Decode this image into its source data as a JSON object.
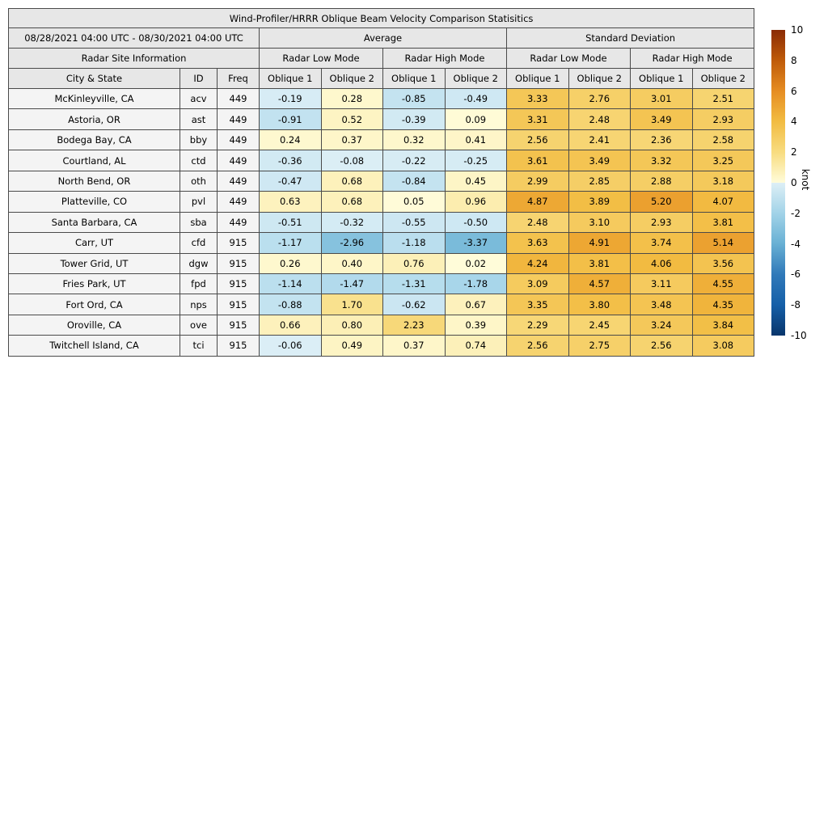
{
  "chart_data": {
    "type": "table",
    "title": "Wind-Profiler/HRRR Oblique Beam Velocity Comparison Statisitics",
    "header": {
      "date_range": "08/28/2021 04:00 UTC - 08/30/2021 04:00 UTC",
      "group_average": "Average",
      "group_std": "Standard Deviation",
      "site_info": "Radar Site Information",
      "low_mode": "Radar Low Mode",
      "high_mode": "Radar High Mode",
      "col_city": "City & State",
      "col_id": "ID",
      "col_freq": "Freq",
      "col_oblique1": "Oblique 1",
      "col_oblique2": "Oblique 2"
    },
    "rows": [
      {
        "city": "McKinleyville, CA",
        "id": "acv",
        "freq": "449",
        "values": [
          "-0.19",
          "0.28",
          "-0.85",
          "-0.49",
          "3.33",
          "2.76",
          "3.01",
          "2.51"
        ]
      },
      {
        "city": "Astoria, OR",
        "id": "ast",
        "freq": "449",
        "values": [
          "-0.91",
          "0.52",
          "-0.39",
          "0.09",
          "3.31",
          "2.48",
          "3.49",
          "2.93"
        ]
      },
      {
        "city": "Bodega Bay, CA",
        "id": "bby",
        "freq": "449",
        "values": [
          "0.24",
          "0.37",
          "0.32",
          "0.41",
          "2.56",
          "2.41",
          "2.36",
          "2.58"
        ]
      },
      {
        "city": "Courtland, AL",
        "id": "ctd",
        "freq": "449",
        "values": [
          "-0.36",
          "-0.08",
          "-0.22",
          "-0.25",
          "3.61",
          "3.49",
          "3.32",
          "3.25"
        ]
      },
      {
        "city": "North Bend, OR",
        "id": "oth",
        "freq": "449",
        "values": [
          "-0.47",
          "0.68",
          "-0.84",
          "0.45",
          "2.99",
          "2.85",
          "2.88",
          "3.18"
        ]
      },
      {
        "city": "Platteville, CO",
        "id": "pvl",
        "freq": "449",
        "values": [
          "0.63",
          "0.68",
          "0.05",
          "0.96",
          "4.87",
          "3.89",
          "5.20",
          "4.07"
        ]
      },
      {
        "city": "Santa Barbara, CA",
        "id": "sba",
        "freq": "449",
        "values": [
          "-0.51",
          "-0.32",
          "-0.55",
          "-0.50",
          "2.48",
          "3.10",
          "2.93",
          "3.81"
        ]
      },
      {
        "city": "Carr, UT",
        "id": "cfd",
        "freq": "915",
        "values": [
          "-1.17",
          "-2.96",
          "-1.18",
          "-3.37",
          "3.63",
          "4.91",
          "3.74",
          "5.14"
        ]
      },
      {
        "city": "Tower Grid, UT",
        "id": "dgw",
        "freq": "915",
        "values": [
          "0.26",
          "0.40",
          "0.76",
          "0.02",
          "4.24",
          "3.81",
          "4.06",
          "3.56"
        ]
      },
      {
        "city": "Fries Park, UT",
        "id": "fpd",
        "freq": "915",
        "values": [
          "-1.14",
          "-1.47",
          "-1.31",
          "-1.78",
          "3.09",
          "4.57",
          "3.11",
          "4.55"
        ]
      },
      {
        "city": "Fort Ord, CA",
        "id": "nps",
        "freq": "915",
        "values": [
          "-0.88",
          "1.70",
          "-0.62",
          "0.67",
          "3.35",
          "3.80",
          "3.48",
          "4.35"
        ]
      },
      {
        "city": "Oroville, CA",
        "id": "ove",
        "freq": "915",
        "values": [
          "0.66",
          "0.80",
          "2.23",
          "0.39",
          "2.29",
          "2.45",
          "3.24",
          "3.84"
        ]
      },
      {
        "city": "Twitchell Island, CA",
        "id": "tci",
        "freq": "915",
        "values": [
          "-0.06",
          "0.49",
          "0.37",
          "0.74",
          "2.56",
          "2.75",
          "2.56",
          "3.08"
        ]
      }
    ],
    "colorbar": {
      "label": "knot",
      "vmin": -10,
      "vmax": 10,
      "ticks": [
        "10",
        "8",
        "6",
        "4",
        "2",
        "0",
        "-2",
        "-4",
        "-6",
        "-8",
        "-10"
      ]
    },
    "colors": {
      "header_bg": "#e7e7e7",
      "label_bg": "#f4f4f4",
      "border": "#4a4a4a",
      "colormap": [
        {
          "v": -10,
          "c": "#08356b"
        },
        {
          "v": -8,
          "c": "#155fa8"
        },
        {
          "v": -6,
          "c": "#3079b9"
        },
        {
          "v": -4,
          "c": "#68b0d4"
        },
        {
          "v": -2,
          "c": "#a2d3e8"
        },
        {
          "v": -0.001,
          "c": "#ddeff6"
        },
        {
          "v": 0.001,
          "c": "#fffcda"
        },
        {
          "v": 2,
          "c": "#f8dc80"
        },
        {
          "v": 4,
          "c": "#f2bc42"
        },
        {
          "v": 6,
          "c": "#e68d22"
        },
        {
          "v": 8,
          "c": "#bf5b09"
        },
        {
          "v": 10,
          "c": "#8a2b05"
        }
      ]
    }
  }
}
